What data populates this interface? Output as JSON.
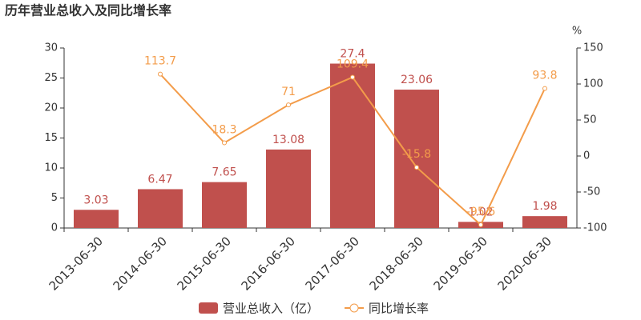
{
  "chart_data": {
    "type": "bar",
    "title": "历年营业总收入及同比增长率",
    "y2_unit": "%",
    "categories": [
      "2013-06-30",
      "2014-06-30",
      "2015-06-30",
      "2016-06-30",
      "2017-06-30",
      "2018-06-30",
      "2019-06-30",
      "2020-06-30"
    ],
    "series": [
      {
        "name": "营业总收入（亿）",
        "type": "bar",
        "color": "#c0504d",
        "values": [
          3.03,
          6.47,
          7.65,
          13.08,
          27.4,
          23.06,
          1.02,
          1.98
        ]
      },
      {
        "name": "同比增长率",
        "type": "line",
        "axis": "y2",
        "color": "#f39c4a",
        "values": [
          null,
          113.7,
          18.3,
          71,
          109.4,
          -15.8,
          -95.6,
          93.8
        ]
      }
    ],
    "ylim": [
      0,
      30
    ],
    "yticks": [
      0,
      5,
      10,
      15,
      20,
      25,
      30
    ],
    "y2lim": [
      -100,
      150
    ],
    "y2ticks": [
      -100,
      -50,
      0,
      50,
      100,
      150
    ]
  }
}
